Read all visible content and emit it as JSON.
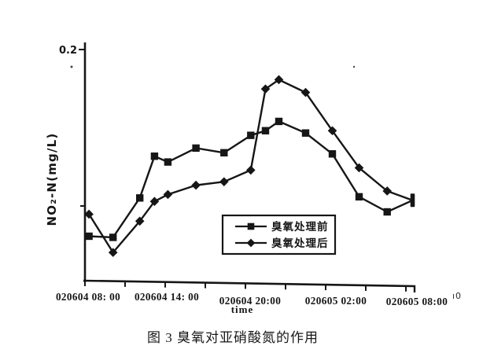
{
  "canvas": {
    "bg": "#ffffff",
    "ink": "#161616"
  },
  "figure": {
    "caption": "图 3 臭氧对亚硝酸氮的作用",
    "stray_mark": "ı0"
  },
  "chart_data": {
    "type": "line",
    "title": "",
    "xlabel": "time",
    "ylabel": "NO₂-N(mg/L)",
    "ylim": [
      0,
      0.2
    ],
    "ytick_values": [
      0.2
    ],
    "ytick_labels": [
      "0.2"
    ],
    "xtick_minor_hours": [
      0,
      3,
      6,
      9,
      12,
      15,
      18,
      21,
      24
    ],
    "xtick_major_hours": [
      0,
      6,
      12,
      18,
      24
    ],
    "xtick_labels": [
      "020604 08: 00",
      "020604 14: 00",
      "020604 20:00",
      "020605 02:00",
      "020605 08:00"
    ],
    "x_hours": [
      0.3,
      2.1,
      4.1,
      5.2,
      6.2,
      8.3,
      10.4,
      12.4,
      13.5,
      14.5,
      16.5,
      18.5,
      20.5,
      22.6,
      24.5
    ],
    "series": [
      {
        "name": "臭氧处理前",
        "marker": "square",
        "values": [
          0.039,
          0.038,
          0.072,
          0.108,
          0.103,
          0.115,
          0.111,
          0.126,
          0.13,
          0.138,
          0.128,
          0.11,
          0.073,
          0.06,
          0.07
        ]
      },
      {
        "name": "臭氧处理后",
        "marker": "diamond",
        "values": [
          0.058,
          0.025,
          0.052,
          0.069,
          0.075,
          0.083,
          0.086,
          0.096,
          0.166,
          0.174,
          0.163,
          0.13,
          0.098,
          0.078,
          0.07
        ]
      }
    ],
    "legend_position": "inside lower right",
    "grid": false
  }
}
